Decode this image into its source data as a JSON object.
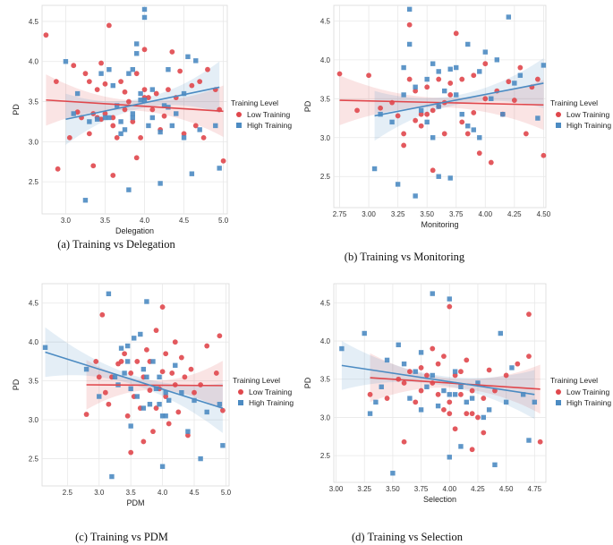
{
  "chart_data": [
    {
      "type": "scatter",
      "caption": "(a) Training vs Delegation",
      "xlabel": "Delegation",
      "ylabel": "PD",
      "xlim": [
        2.7,
        5.05
      ],
      "ylim": [
        2.1,
        4.7
      ],
      "xticks": [
        "3.0",
        "3.5",
        "4.0",
        "4.5",
        "5.0"
      ],
      "yticks": [
        "2.5",
        "3.0",
        "3.5",
        "4.0",
        "4.5"
      ],
      "legend_title": "Training Level",
      "series": [
        {
          "name": "Low Training",
          "color": "#e0474c",
          "marker": "circle",
          "x": [
            2.75,
            2.88,
            2.9,
            3.05,
            3.1,
            3.15,
            3.2,
            3.25,
            3.3,
            3.35,
            3.35,
            3.4,
            3.4,
            3.45,
            3.5,
            3.5,
            3.55,
            3.6,
            3.6,
            3.65,
            3.7,
            3.75,
            3.75,
            3.8,
            3.85,
            3.9,
            3.9,
            3.95,
            4.0,
            4.0,
            4.05,
            4.1,
            4.15,
            4.2,
            4.25,
            4.3,
            4.35,
            4.4,
            4.45,
            4.5,
            4.6,
            4.65,
            4.7,
            4.75,
            4.8,
            4.9,
            4.95,
            5.0,
            3.3,
            3.6,
            4.0,
            3.45
          ],
          "y": [
            4.33,
            3.75,
            2.66,
            3.05,
            3.95,
            3.37,
            3.3,
            3.85,
            3.1,
            3.35,
            2.7,
            3.3,
            3.65,
            3.28,
            3.35,
            3.72,
            4.45,
            2.58,
            3.3,
            3.05,
            3.75,
            3.4,
            3.62,
            3.5,
            3.25,
            3.85,
            2.8,
            3.05,
            4.15,
            3.65,
            3.55,
            3.4,
            3.6,
            3.15,
            3.32,
            3.65,
            4.12,
            3.55,
            3.88,
            3.1,
            3.7,
            3.2,
            3.75,
            3.05,
            3.9,
            3.65,
            3.4,
            2.76,
            3.75,
            3.2,
            3.55,
            3.98
          ],
          "fit": {
            "x": [
              2.75,
              5.0
            ],
            "y": [
              3.52,
              3.38
            ]
          }
        },
        {
          "name": "High Training",
          "color": "#4c8bc2",
          "marker": "square",
          "x": [
            3.0,
            3.1,
            3.15,
            3.25,
            3.3,
            3.4,
            3.45,
            3.5,
            3.55,
            3.6,
            3.65,
            3.7,
            3.7,
            3.75,
            3.8,
            3.8,
            3.85,
            3.9,
            3.9,
            3.95,
            3.95,
            4.0,
            4.0,
            4.05,
            4.1,
            4.1,
            4.2,
            4.2,
            4.25,
            4.3,
            4.35,
            4.4,
            4.5,
            4.5,
            4.55,
            4.6,
            4.65,
            4.7,
            4.9,
            4.95,
            3.55,
            3.85,
            3.85,
            4.0,
            4.3
          ],
          "y": [
            4.0,
            3.35,
            3.6,
            2.27,
            3.25,
            3.28,
            3.85,
            3.3,
            3.9,
            3.7,
            3.45,
            3.25,
            3.1,
            3.15,
            2.4,
            3.85,
            3.3,
            4.22,
            4.1,
            3.52,
            3.6,
            4.55,
            4.65,
            3.2,
            3.3,
            3.65,
            3.12,
            2.48,
            3.45,
            3.9,
            3.2,
            3.35,
            3.05,
            3.6,
            4.06,
            2.6,
            4.01,
            3.15,
            3.2,
            2.67,
            3.3,
            3.35,
            3.9,
            3.52,
            3.43
          ],
          "fit": {
            "x": [
              3.0,
              4.95
            ],
            "y": [
              3.28,
              3.68
            ]
          }
        }
      ]
    },
    {
      "type": "scatter",
      "caption": "(b) Training vs Monitoring",
      "xlabel": "Monitoring",
      "ylabel": "PD",
      "xlim": [
        2.7,
        4.52
      ],
      "ylim": [
        2.1,
        4.7
      ],
      "xticks": [
        "2.75",
        "3.00",
        "3.25",
        "3.50",
        "3.75",
        "4.00",
        "4.25",
        "4.50"
      ],
      "yticks": [
        "2.5",
        "3.0",
        "3.5",
        "4.0",
        "4.5"
      ],
      "legend_title": "Training Level",
      "series": [
        {
          "name": "Low Training",
          "color": "#e0474c",
          "marker": "circle",
          "x": [
            2.75,
            2.9,
            3.0,
            3.1,
            3.2,
            3.25,
            3.3,
            3.35,
            3.35,
            3.4,
            3.4,
            3.45,
            3.5,
            3.5,
            3.55,
            3.6,
            3.6,
            3.65,
            3.7,
            3.7,
            3.75,
            3.8,
            3.8,
            3.85,
            3.9,
            3.9,
            3.95,
            4.0,
            4.0,
            4.05,
            4.1,
            4.15,
            4.2,
            4.25,
            4.3,
            4.35,
            4.4,
            4.45,
            4.5,
            3.3,
            3.55,
            3.45,
            3.65
          ],
          "y": [
            3.82,
            3.35,
            3.8,
            3.38,
            3.45,
            3.28,
            3.05,
            4.45,
            3.75,
            3.22,
            3.6,
            3.3,
            3.3,
            3.65,
            2.58,
            3.4,
            3.75,
            3.05,
            3.55,
            3.7,
            4.34,
            3.75,
            3.2,
            3.05,
            3.32,
            3.8,
            2.8,
            3.95,
            3.5,
            2.68,
            3.6,
            3.3,
            3.72,
            3.48,
            3.9,
            3.05,
            3.65,
            3.75,
            2.77,
            2.9,
            3.35,
            3.15,
            3.45
          ],
          "fit": {
            "x": [
              2.75,
              4.5
            ],
            "y": [
              3.48,
              3.42
            ]
          }
        },
        {
          "name": "High Training",
          "color": "#4c8bc2",
          "marker": "square",
          "x": [
            3.05,
            3.1,
            3.2,
            3.25,
            3.3,
            3.3,
            3.35,
            3.4,
            3.45,
            3.5,
            3.5,
            3.55,
            3.55,
            3.6,
            3.6,
            3.65,
            3.7,
            3.75,
            3.75,
            3.8,
            3.85,
            3.9,
            3.95,
            4.0,
            4.05,
            4.1,
            4.15,
            4.2,
            4.25,
            4.3,
            4.45,
            4.5,
            3.4,
            3.35,
            3.6,
            3.7,
            3.85,
            3.95
          ],
          "y": [
            2.6,
            3.3,
            3.2,
            2.4,
            3.9,
            3.55,
            4.65,
            2.25,
            3.35,
            3.75,
            3.2,
            3.95,
            3.0,
            2.5,
            3.85,
            3.6,
            2.48,
            3.55,
            3.9,
            3.3,
            3.15,
            3.1,
            3.85,
            4.1,
            3.5,
            4.0,
            3.3,
            4.55,
            3.7,
            3.8,
            3.25,
            3.93,
            3.65,
            4.2,
            3.4,
            3.88,
            4.2,
            3.0
          ],
          "fit": {
            "x": [
              3.05,
              4.5
            ],
            "y": [
              3.28,
              3.7
            ]
          }
        }
      ]
    },
    {
      "type": "scatter",
      "caption": "(c) Training vs PDM",
      "xlabel": "PDM",
      "ylabel": "PD",
      "xlim": [
        2.1,
        5.05
      ],
      "ylim": [
        2.15,
        4.75
      ],
      "xticks": [
        "2.5",
        "3.0",
        "3.5",
        "4.0",
        "4.5",
        "5.0"
      ],
      "yticks": [
        "2.5",
        "3.0",
        "3.5",
        "4.0",
        "4.5"
      ],
      "legend_title": "Training Level",
      "series": [
        {
          "name": "Low Training",
          "color": "#e0474c",
          "marker": "circle",
          "x": [
            2.8,
            2.95,
            3.0,
            3.05,
            3.1,
            3.2,
            3.3,
            3.4,
            3.45,
            3.5,
            3.5,
            3.55,
            3.6,
            3.65,
            3.7,
            3.7,
            3.75,
            3.8,
            3.8,
            3.85,
            3.9,
            3.95,
            4.0,
            4.0,
            4.05,
            4.05,
            4.1,
            4.2,
            4.2,
            4.25,
            4.3,
            4.35,
            4.4,
            4.45,
            4.5,
            4.6,
            4.7,
            4.85,
            4.9,
            4.95,
            3.15,
            3.35,
            3.9,
            4.15
          ],
          "y": [
            3.07,
            3.75,
            3.55,
            4.35,
            3.35,
            3.55,
            3.72,
            3.85,
            3.05,
            3.6,
            2.58,
            3.3,
            3.75,
            3.15,
            3.55,
            2.72,
            3.9,
            3.38,
            3.75,
            2.85,
            3.15,
            3.4,
            3.62,
            4.45,
            3.3,
            3.85,
            2.95,
            4.0,
            3.45,
            3.1,
            3.8,
            3.55,
            2.8,
            3.65,
            3.35,
            3.45,
            3.95,
            3.6,
            4.08,
            3.12,
            3.2,
            3.75,
            4.15,
            3.6
          ],
          "fit": {
            "x": [
              2.8,
              4.95
            ],
            "y": [
              3.45,
              3.44
            ]
          }
        },
        {
          "name": "High Training",
          "color": "#4c8bc2",
          "marker": "square",
          "x": [
            2.15,
            2.8,
            3.0,
            3.15,
            3.2,
            3.25,
            3.3,
            3.35,
            3.4,
            3.45,
            3.5,
            3.55,
            3.6,
            3.65,
            3.7,
            3.75,
            3.75,
            3.8,
            3.85,
            3.9,
            3.95,
            4.0,
            4.0,
            4.05,
            4.1,
            4.2,
            4.3,
            4.4,
            4.5,
            4.6,
            4.7,
            4.9,
            4.95,
            3.45,
            3.5,
            3.7,
            3.95,
            4.05
          ],
          "y": [
            3.93,
            3.65,
            3.3,
            4.62,
            2.27,
            3.55,
            3.45,
            3.92,
            3.6,
            3.75,
            2.92,
            4.05,
            3.3,
            4.1,
            3.15,
            3.55,
            4.52,
            3.2,
            3.75,
            3.4,
            3.55,
            2.4,
            3.05,
            3.35,
            3.25,
            3.7,
            3.35,
            2.85,
            3.25,
            2.5,
            3.1,
            3.2,
            2.67,
            3.95,
            3.4,
            3.65,
            3.2,
            3.05
          ],
          "fit": {
            "x": [
              2.15,
              4.95
            ],
            "y": [
              3.87,
              3.15
            ]
          }
        }
      ]
    },
    {
      "type": "scatter",
      "caption": "(d) Training vs Selection",
      "xlabel": "Selection",
      "ylabel": "PD",
      "xlim": [
        2.98,
        4.85
      ],
      "ylim": [
        2.15,
        4.75
      ],
      "xticks": [
        "3.00",
        "3.25",
        "3.50",
        "3.75",
        "4.00",
        "4.25",
        "4.50",
        "4.75"
      ],
      "yticks": [
        "2.5",
        "3.0",
        "3.5",
        "4.0",
        "4.5"
      ],
      "legend_title": "Training Level",
      "series": [
        {
          "name": "Low Training",
          "color": "#e0474c",
          "marker": "circle",
          "x": [
            3.3,
            3.45,
            3.55,
            3.6,
            3.65,
            3.7,
            3.75,
            3.8,
            3.85,
            3.85,
            3.9,
            3.9,
            3.95,
            4.0,
            4.0,
            4.05,
            4.05,
            4.1,
            4.1,
            4.15,
            4.15,
            4.2,
            4.2,
            4.25,
            4.3,
            4.3,
            4.35,
            4.4,
            4.5,
            4.6,
            4.7,
            4.7,
            4.8,
            3.75,
            3.95,
            4.0,
            4.2,
            3.6
          ],
          "y": [
            3.3,
            3.25,
            3.5,
            2.68,
            3.6,
            3.2,
            3.35,
            3.55,
            3.9,
            3.45,
            3.7,
            3.3,
            3.1,
            4.45,
            3.05,
            3.55,
            2.85,
            3.3,
            3.6,
            3.75,
            3.05,
            3.35,
            2.58,
            3.0,
            3.25,
            2.8,
            3.62,
            3.35,
            3.55,
            3.7,
            4.35,
            3.8,
            2.68,
            3.65,
            3.8,
            3.2,
            3.05,
            3.45
          ],
          "fit": {
            "x": [
              3.3,
              4.8
            ],
            "y": [
              3.52,
              3.37
            ]
          }
        },
        {
          "name": "High Training",
          "color": "#4c8bc2",
          "marker": "square",
          "x": [
            3.05,
            3.25,
            3.3,
            3.35,
            3.4,
            3.5,
            3.55,
            3.6,
            3.65,
            3.7,
            3.75,
            3.8,
            3.85,
            3.9,
            3.95,
            4.0,
            4.0,
            4.05,
            4.05,
            4.1,
            4.1,
            4.15,
            4.2,
            4.25,
            4.3,
            4.35,
            4.4,
            4.45,
            4.5,
            4.55,
            4.65,
            4.7,
            4.75,
            3.45,
            3.75,
            3.85,
            4.0
          ],
          "y": [
            3.9,
            4.1,
            3.05,
            3.2,
            3.4,
            2.27,
            3.95,
            3.7,
            3.25,
            3.6,
            3.1,
            3.4,
            4.62,
            3.15,
            3.35,
            4.55,
            2.48,
            3.3,
            3.6,
            2.62,
            3.4,
            3.2,
            3.25,
            3.45,
            3.0,
            3.1,
            2.38,
            4.1,
            3.2,
            3.65,
            3.3,
            2.7,
            3.2,
            3.75,
            3.85,
            3.55,
            3.3
          ],
          "fit": {
            "x": [
              3.05,
              4.75
            ],
            "y": [
              3.68,
              3.3
            ]
          }
        }
      ]
    }
  ]
}
